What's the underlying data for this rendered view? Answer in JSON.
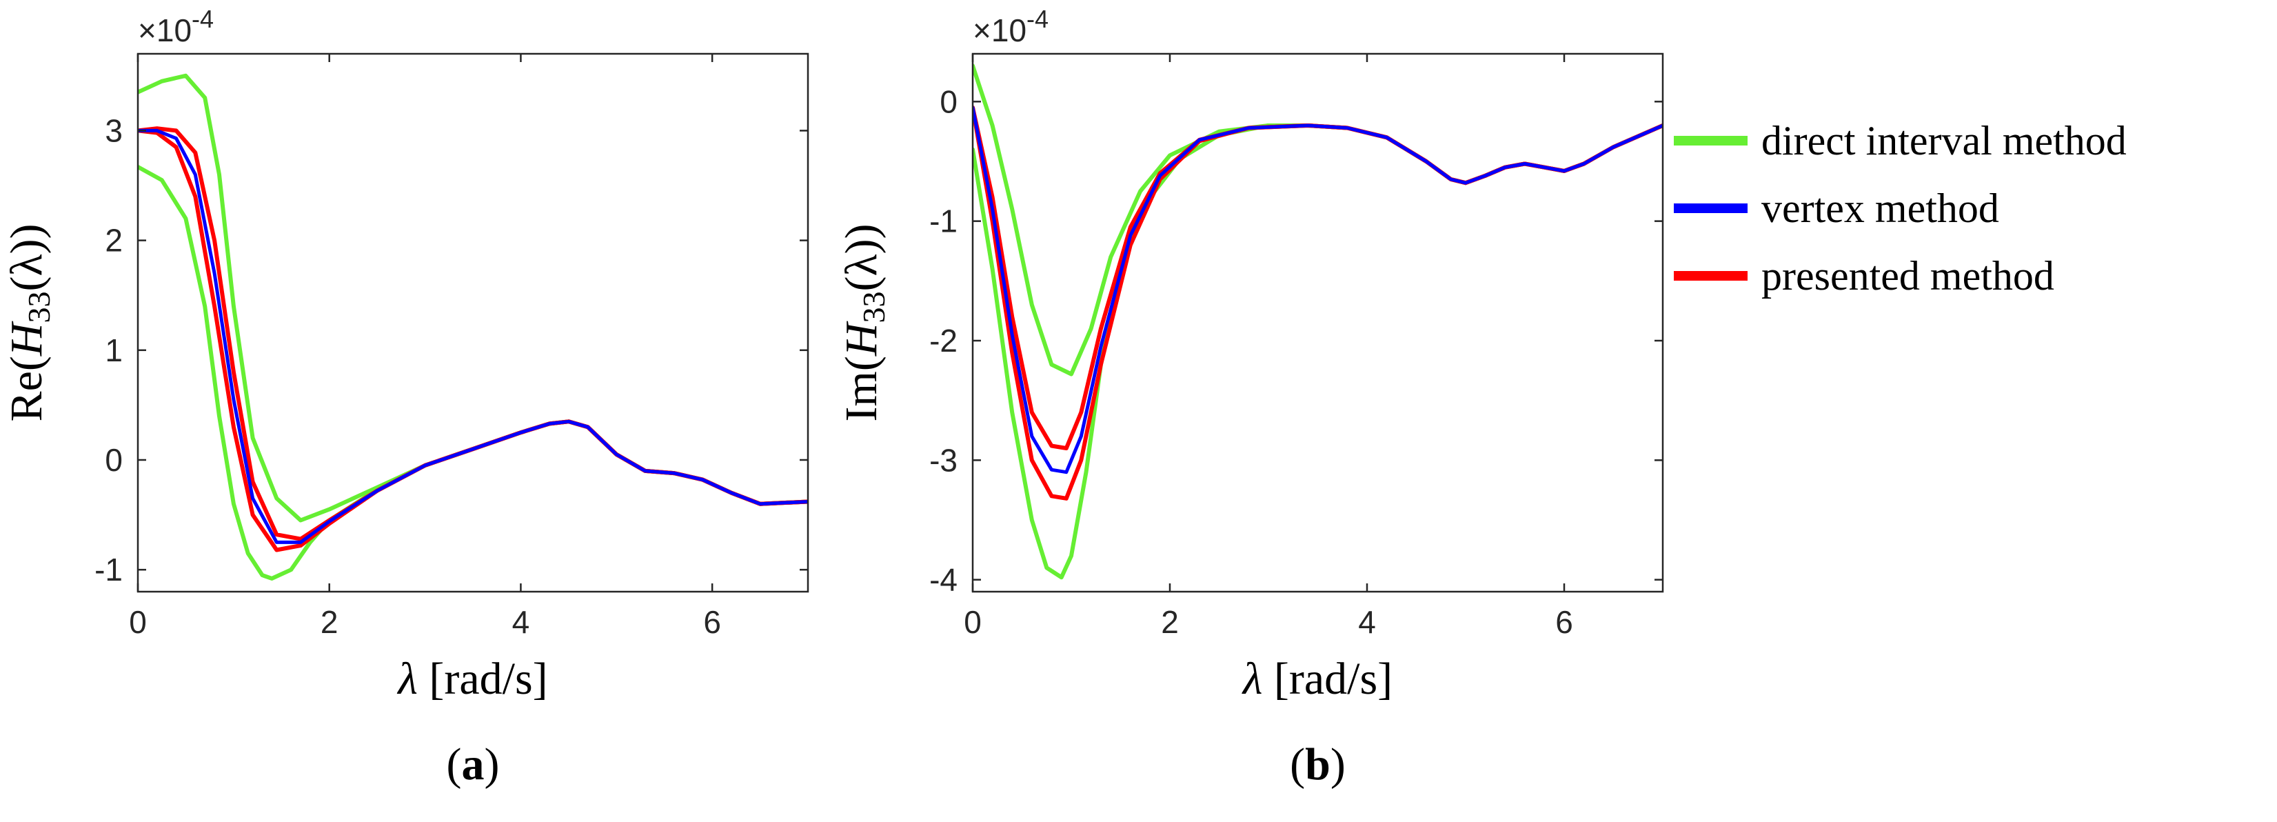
{
  "legend": {
    "position": "right",
    "entries": [
      {
        "label": "direct interval method",
        "color": "#66ee33"
      },
      {
        "label": "vertex method",
        "color": "#0000ff"
      },
      {
        "label": "presented method",
        "color": "#ff0000"
      }
    ]
  },
  "chart_data": [
    {
      "type": "line",
      "panel_label": "a",
      "xlabel": "[rad/s]",
      "xsymbol": "λ",
      "ylabel_prefix": "Re(",
      "ylabel_symbol": "H",
      "ylabel_sub": "33",
      "ylabel_suffix": "(λ))",
      "exponent_label": "×10",
      "exponent_power": "-4",
      "xlim": [
        0,
        7
      ],
      "ylim": [
        -1.2,
        3.7
      ],
      "xticks": [
        0,
        2,
        4,
        6
      ],
      "yticks": [
        -1,
        0,
        1,
        2,
        3
      ],
      "grid": false,
      "series": [
        {
          "name": "direct interval method (upper)",
          "color": "#66ee33",
          "width": 6,
          "x": [
            0,
            0.25,
            0.5,
            0.7,
            0.85,
            1.0,
            1.2,
            1.45,
            1.7,
            2.0,
            2.5,
            3.0,
            3.5,
            4.0,
            4.3,
            4.5,
            4.7,
            5.0,
            5.3,
            5.6,
            5.9,
            6.2,
            6.5,
            7.0
          ],
          "y": [
            3.35,
            3.45,
            3.5,
            3.3,
            2.6,
            1.4,
            0.2,
            -0.35,
            -0.55,
            -0.45,
            -0.25,
            -0.05,
            0.1,
            0.25,
            0.33,
            0.35,
            0.3,
            0.05,
            -0.1,
            -0.12,
            -0.18,
            -0.3,
            -0.4,
            -0.38
          ]
        },
        {
          "name": "direct interval method (lower)",
          "color": "#66ee33",
          "width": 6,
          "x": [
            0,
            0.25,
            0.5,
            0.7,
            0.85,
            1.0,
            1.15,
            1.3,
            1.4,
            1.6,
            1.8,
            2.0,
            2.5,
            3.0,
            3.5,
            4.0,
            4.3,
            4.5,
            4.7,
            5.0,
            5.3,
            5.6,
            5.9,
            6.2,
            6.5,
            7.0
          ],
          "y": [
            2.67,
            2.55,
            2.2,
            1.4,
            0.4,
            -0.4,
            -0.85,
            -1.05,
            -1.08,
            -1.0,
            -0.75,
            -0.55,
            -0.27,
            -0.05,
            0.1,
            0.25,
            0.33,
            0.35,
            0.3,
            0.05,
            -0.1,
            -0.12,
            -0.18,
            -0.3,
            -0.4,
            -0.38
          ]
        },
        {
          "name": "presented method (upper)",
          "color": "#ff0000",
          "width": 6,
          "x": [
            0,
            0.2,
            0.4,
            0.6,
            0.8,
            1.0,
            1.2,
            1.45,
            1.7,
            2.0,
            2.5,
            3.0,
            3.5,
            4.0,
            4.3,
            4.5,
            4.7,
            5.0,
            5.3,
            5.6,
            5.9,
            6.2,
            6.5,
            7.0
          ],
          "y": [
            3.0,
            3.02,
            3.0,
            2.8,
            2.0,
            0.8,
            -0.2,
            -0.68,
            -0.72,
            -0.55,
            -0.28,
            -0.05,
            0.1,
            0.25,
            0.33,
            0.35,
            0.3,
            0.05,
            -0.1,
            -0.12,
            -0.18,
            -0.3,
            -0.4,
            -0.38
          ]
        },
        {
          "name": "presented method (lower)",
          "color": "#ff0000",
          "width": 6,
          "x": [
            0,
            0.2,
            0.4,
            0.6,
            0.8,
            1.0,
            1.2,
            1.45,
            1.7,
            2.0,
            2.5,
            3.0,
            3.5,
            4.0,
            4.3,
            4.5,
            4.7,
            5.0,
            5.3,
            5.6,
            5.9,
            6.2,
            6.5,
            7.0
          ],
          "y": [
            3.0,
            2.98,
            2.85,
            2.4,
            1.4,
            0.3,
            -0.5,
            -0.82,
            -0.78,
            -0.58,
            -0.28,
            -0.05,
            0.1,
            0.25,
            0.33,
            0.35,
            0.3,
            0.05,
            -0.1,
            -0.12,
            -0.18,
            -0.3,
            -0.4,
            -0.38
          ]
        },
        {
          "name": "vertex method",
          "color": "#0000ff",
          "width": 5,
          "x": [
            0,
            0.2,
            0.4,
            0.6,
            0.8,
            1.0,
            1.2,
            1.45,
            1.7,
            2.0,
            2.5,
            3.0,
            3.5,
            4.0,
            4.3,
            4.5,
            4.7,
            5.0,
            5.3,
            5.6,
            5.9,
            6.2,
            6.5,
            7.0
          ],
          "y": [
            3.0,
            3.0,
            2.93,
            2.6,
            1.7,
            0.55,
            -0.35,
            -0.75,
            -0.75,
            -0.56,
            -0.28,
            -0.05,
            0.1,
            0.25,
            0.33,
            0.35,
            0.3,
            0.05,
            -0.1,
            -0.12,
            -0.18,
            -0.3,
            -0.4,
            -0.38
          ]
        }
      ]
    },
    {
      "type": "line",
      "panel_label": "b",
      "xlabel": "[rad/s]",
      "xsymbol": "λ",
      "ylabel_prefix": "Im(",
      "ylabel_symbol": "H",
      "ylabel_sub": "33",
      "ylabel_suffix": "(λ))",
      "exponent_label": "×10",
      "exponent_power": "-4",
      "xlim": [
        0,
        7
      ],
      "ylim": [
        -4.1,
        0.4
      ],
      "xticks": [
        0,
        2,
        4,
        6
      ],
      "yticks": [
        -4,
        -3,
        -2,
        -1,
        0
      ],
      "grid": false,
      "series": [
        {
          "name": "direct interval method (upper)",
          "color": "#66ee33",
          "width": 6,
          "x": [
            0,
            0.2,
            0.4,
            0.6,
            0.8,
            1.0,
            1.2,
            1.4,
            1.7,
            2.0,
            2.5,
            3.0,
            3.4,
            3.8,
            4.2,
            4.6,
            4.85,
            5.0,
            5.2,
            5.4,
            5.6,
            5.8,
            6.0,
            6.2,
            6.5,
            7.0
          ],
          "y": [
            0.3,
            -0.2,
            -0.9,
            -1.7,
            -2.2,
            -2.28,
            -1.9,
            -1.3,
            -0.75,
            -0.45,
            -0.25,
            -0.2,
            -0.2,
            -0.22,
            -0.3,
            -0.5,
            -0.65,
            -0.68,
            -0.62,
            -0.55,
            -0.52,
            -0.55,
            -0.58,
            -0.52,
            -0.38,
            -0.2
          ]
        },
        {
          "name": "direct interval method (lower)",
          "color": "#66ee33",
          "width": 6,
          "x": [
            0,
            0.2,
            0.4,
            0.6,
            0.75,
            0.9,
            1.0,
            1.15,
            1.3,
            1.5,
            1.8,
            2.1,
            2.5,
            3.0,
            3.4,
            3.8,
            4.2,
            4.6,
            4.85,
            5.0,
            5.2,
            5.4,
            5.6,
            5.8,
            6.0,
            6.2,
            6.5,
            7.0
          ],
          "y": [
            -0.4,
            -1.4,
            -2.6,
            -3.5,
            -3.9,
            -3.98,
            -3.8,
            -3.1,
            -2.2,
            -1.4,
            -0.8,
            -0.48,
            -0.28,
            -0.2,
            -0.2,
            -0.22,
            -0.3,
            -0.5,
            -0.65,
            -0.68,
            -0.62,
            -0.55,
            -0.52,
            -0.55,
            -0.58,
            -0.52,
            -0.38,
            -0.2
          ]
        },
        {
          "name": "presented method (upper)",
          "color": "#ff0000",
          "width": 6,
          "x": [
            0,
            0.2,
            0.4,
            0.6,
            0.8,
            0.95,
            1.1,
            1.3,
            1.6,
            1.9,
            2.3,
            2.8,
            3.4,
            3.8,
            4.2,
            4.6,
            4.85,
            5.0,
            5.2,
            5.4,
            5.6,
            5.8,
            6.0,
            6.2,
            6.5,
            7.0
          ],
          "y": [
            -0.05,
            -0.8,
            -1.8,
            -2.6,
            -2.88,
            -2.9,
            -2.6,
            -1.9,
            -1.05,
            -0.6,
            -0.32,
            -0.22,
            -0.2,
            -0.22,
            -0.3,
            -0.5,
            -0.65,
            -0.68,
            -0.62,
            -0.55,
            -0.52,
            -0.55,
            -0.58,
            -0.52,
            -0.38,
            -0.2
          ]
        },
        {
          "name": "presented method (lower)",
          "color": "#ff0000",
          "width": 6,
          "x": [
            0,
            0.2,
            0.4,
            0.6,
            0.8,
            0.95,
            1.1,
            1.3,
            1.6,
            1.9,
            2.3,
            2.8,
            3.4,
            3.8,
            4.2,
            4.6,
            4.85,
            5.0,
            5.2,
            5.4,
            5.6,
            5.8,
            6.0,
            6.2,
            6.5,
            7.0
          ],
          "y": [
            -0.05,
            -1.0,
            -2.1,
            -3.0,
            -3.3,
            -3.32,
            -3.0,
            -2.2,
            -1.2,
            -0.65,
            -0.33,
            -0.22,
            -0.2,
            -0.22,
            -0.3,
            -0.5,
            -0.65,
            -0.68,
            -0.62,
            -0.55,
            -0.52,
            -0.55,
            -0.58,
            -0.52,
            -0.38,
            -0.2
          ]
        },
        {
          "name": "vertex method",
          "color": "#0000ff",
          "width": 5,
          "x": [
            0,
            0.2,
            0.4,
            0.6,
            0.8,
            0.95,
            1.1,
            1.3,
            1.6,
            1.9,
            2.3,
            2.8,
            3.4,
            3.8,
            4.2,
            4.6,
            4.85,
            5.0,
            5.2,
            5.4,
            5.6,
            5.8,
            6.0,
            6.2,
            6.5,
            7.0
          ],
          "y": [
            -0.05,
            -0.9,
            -1.95,
            -2.8,
            -3.08,
            -3.1,
            -2.8,
            -2.05,
            -1.12,
            -0.62,
            -0.32,
            -0.22,
            -0.2,
            -0.22,
            -0.3,
            -0.5,
            -0.65,
            -0.68,
            -0.62,
            -0.55,
            -0.52,
            -0.55,
            -0.58,
            -0.52,
            -0.38,
            -0.2
          ]
        }
      ]
    }
  ]
}
